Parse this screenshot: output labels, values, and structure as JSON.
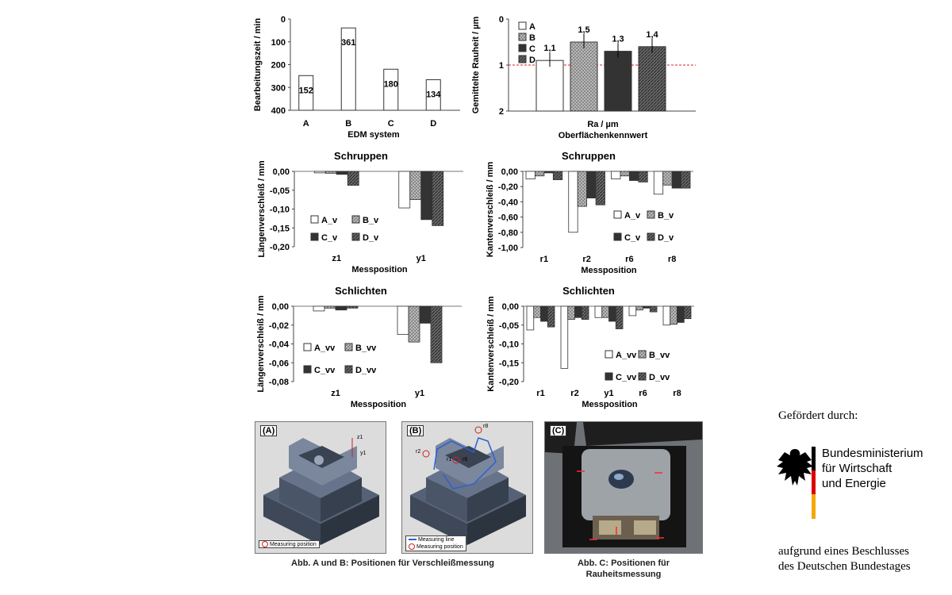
{
  "chart_data": [
    {
      "id": "c1",
      "type": "bar",
      "title": "",
      "xlabel": "EDM system",
      "ylabel": "Bearbeitungszeit / min",
      "categories": [
        "A",
        "B",
        "C",
        "D"
      ],
      "values": [
        152,
        361,
        180,
        134
      ],
      "data_labels": [
        "152",
        "361",
        "180",
        "134"
      ],
      "ylim": [
        0,
        400
      ],
      "yticks": [
        "0",
        "100",
        "200",
        "300",
        "400"
      ],
      "grid": false
    },
    {
      "id": "c2",
      "type": "bar",
      "title": "",
      "xlabel": "Ra / µm",
      "xlabel2": "Oberflächenkennwert",
      "ylabel": "Gemittelte Rauheit / µm",
      "categories": [
        ""
      ],
      "series": [
        {
          "name": "A",
          "values": [
            1.1
          ]
        },
        {
          "name": "B",
          "values": [
            1.5
          ]
        },
        {
          "name": "C",
          "values": [
            1.3
          ]
        },
        {
          "name": "D",
          "values": [
            1.4
          ]
        }
      ],
      "data_labels": [
        "1,1",
        "1,5",
        "1,3",
        "1,4"
      ],
      "reference_line": 1.0,
      "ylim": [
        0,
        2
      ],
      "yticks": [
        "0",
        "1",
        "2"
      ],
      "legend": "top-left",
      "grid": false
    },
    {
      "id": "c3",
      "type": "bar",
      "title": "Schruppen",
      "xlabel": "Messposition",
      "ylabel": "Längenverschleiß / mm",
      "categories": [
        "z1",
        "y1"
      ],
      "series": [
        {
          "name": "A_v",
          "values": [
            -0.004,
            -0.097
          ]
        },
        {
          "name": "B_v",
          "values": [
            -0.005,
            -0.075
          ]
        },
        {
          "name": "C_v",
          "values": [
            -0.008,
            -0.128
          ]
        },
        {
          "name": "D_v",
          "values": [
            -0.037,
            -0.144
          ]
        }
      ],
      "ylim": [
        -0.2,
        0
      ],
      "yticks": [
        "0,00",
        "-0,05",
        "-0,10",
        "-0,15",
        "-0,20"
      ],
      "legend": "bottom-left",
      "grid": false
    },
    {
      "id": "c4",
      "type": "bar",
      "title": "Schruppen",
      "xlabel": "Messposition",
      "ylabel": "Kantenverschleiß / mm",
      "categories": [
        "r1",
        "r2",
        "r6",
        "r8"
      ],
      "series": [
        {
          "name": "A_v",
          "values": [
            -0.1,
            -0.8,
            -0.1,
            -0.3
          ]
        },
        {
          "name": "B_v",
          "values": [
            -0.06,
            -0.46,
            -0.06,
            -0.18
          ]
        },
        {
          "name": "C_v",
          "values": [
            -0.02,
            -0.35,
            -0.12,
            -0.22
          ]
        },
        {
          "name": "D_v",
          "values": [
            -0.11,
            -0.44,
            -0.14,
            -0.22
          ]
        }
      ],
      "ylim": [
        -1.0,
        0
      ],
      "yticks": [
        "0,00",
        "-0,20",
        "-0,40",
        "-0,60",
        "-0,80",
        "-1,00"
      ],
      "legend": "bottom-right",
      "grid": false
    },
    {
      "id": "c5",
      "type": "bar",
      "title": "Schlichten",
      "xlabel": "Messposition",
      "ylabel": "Längenverschleiß / mm",
      "categories": [
        "z1",
        "y1"
      ],
      "series": [
        {
          "name": "A_vv",
          "values": [
            -0.005,
            -0.03
          ]
        },
        {
          "name": "B_vv",
          "values": [
            -0.002,
            -0.038
          ]
        },
        {
          "name": "C_vv",
          "values": [
            -0.004,
            -0.018
          ]
        },
        {
          "name": "D_vv",
          "values": [
            -0.002,
            -0.06
          ]
        }
      ],
      "ylim": [
        -0.08,
        0
      ],
      "yticks": [
        "0,00",
        "-0,02",
        "-0,04",
        "-0,06",
        "-0,08"
      ],
      "legend": "bottom-left",
      "grid": false
    },
    {
      "id": "c6",
      "type": "bar",
      "title": "Schlichten",
      "xlabel": "Messposition",
      "ylabel": "Kantenverschleiß / mm",
      "categories": [
        "r1",
        "r2",
        "y1",
        "r6",
        "r8"
      ],
      "series": [
        {
          "name": "A_vv",
          "values": [
            -0.063,
            -0.165,
            -0.03,
            -0.025,
            -0.05
          ]
        },
        {
          "name": "B_vv",
          "values": [
            -0.03,
            -0.035,
            -0.03,
            -0.01,
            -0.048
          ]
        },
        {
          "name": "C_vv",
          "values": [
            -0.04,
            -0.03,
            -0.04,
            -0.005,
            -0.043
          ]
        },
        {
          "name": "D_vv",
          "values": [
            -0.055,
            -0.035,
            -0.06,
            -0.015,
            -0.033
          ]
        }
      ],
      "ylim": [
        -0.2,
        0
      ],
      "yticks": [
        "0,00",
        "-0,05",
        "-0,10",
        "-0,15",
        "-0,20"
      ],
      "legend": "bottom-right",
      "grid": false
    }
  ],
  "photos": {
    "a": {
      "tag": "(A)",
      "legend": "Measuring position",
      "labels": [
        "z1",
        "y1"
      ]
    },
    "b": {
      "tag": "(B)",
      "legend_line": "Measuring line",
      "legend_circle": "Measuring position",
      "labels": [
        "r2",
        "r1",
        "r6",
        "r8"
      ]
    },
    "c": {
      "tag": "(C)"
    }
  },
  "captions": {
    "ab": "Abb. A und B: Positionen für Verschleißmessung",
    "c1": "Abb. C: Positionen für",
    "c2": "Rauheitsmessung"
  },
  "funding": {
    "heading": "Gefördert durch:",
    "ministry": [
      "Bundesministerium",
      "für Wirtschaft",
      "und Energie"
    ],
    "note": [
      "aufgrund eines Beschlusses",
      "des Deutschen Bundestages"
    ]
  },
  "colors": {
    "A": "#ffffff",
    "B": "#9a9a9a",
    "C": "#333333",
    "D": "#5a5a5a",
    "ref_line": "#e02020"
  }
}
